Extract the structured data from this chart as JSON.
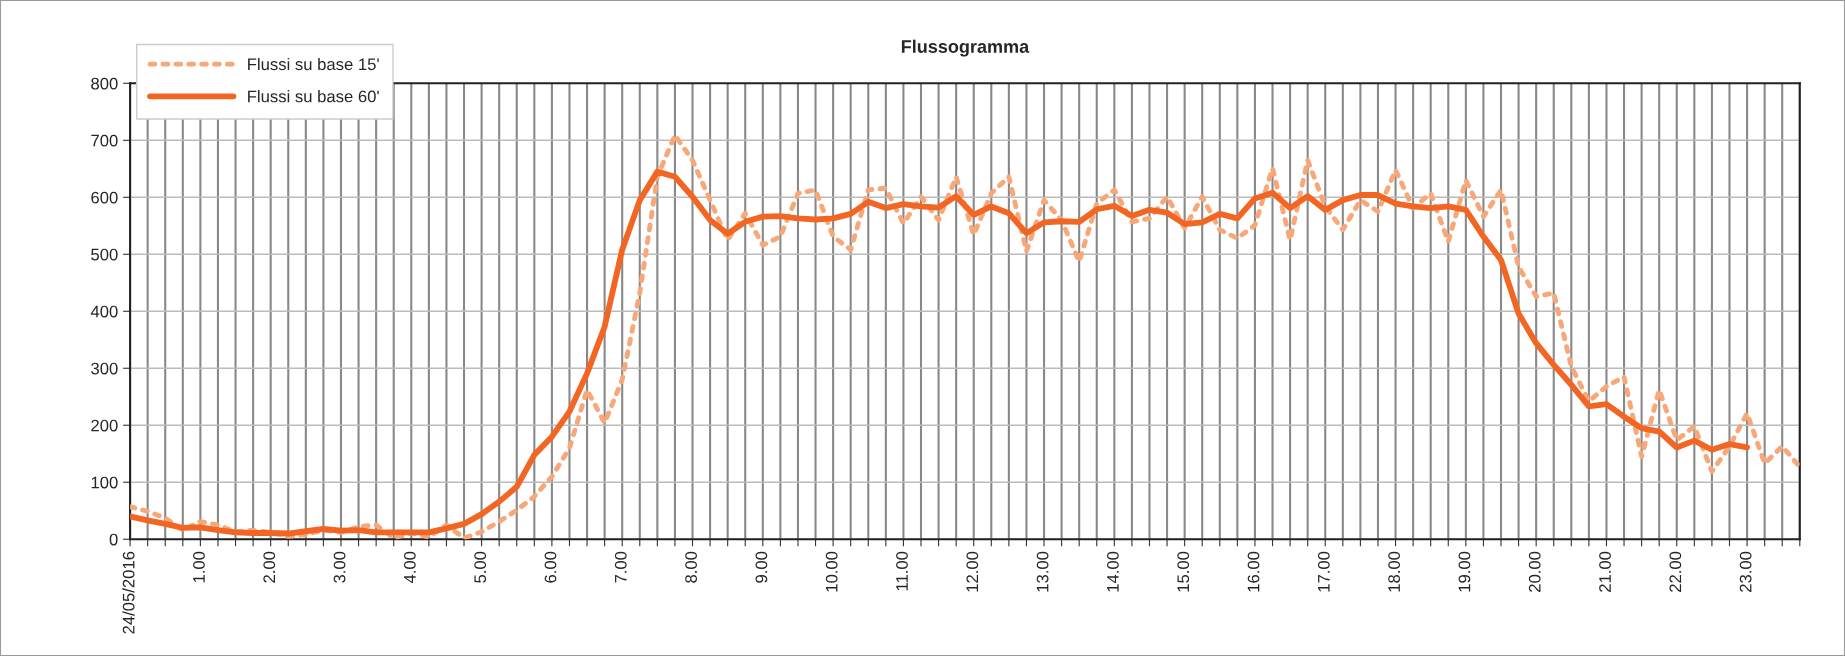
{
  "chart_data": {
    "type": "line",
    "title": "Flussogramma",
    "categories": [
      "24/05/2016",
      null,
      null,
      null,
      "1.00",
      null,
      null,
      null,
      "2.00",
      null,
      null,
      null,
      "3.00",
      null,
      null,
      null,
      "4.00",
      null,
      null,
      null,
      "5.00",
      null,
      null,
      null,
      "6.00",
      null,
      null,
      null,
      "7.00",
      null,
      null,
      null,
      "8.00",
      null,
      null,
      null,
      "9.00",
      null,
      null,
      null,
      "10.00",
      null,
      null,
      null,
      "11.00",
      null,
      null,
      null,
      "12.00",
      null,
      null,
      null,
      "13.00",
      null,
      null,
      null,
      "14.00",
      null,
      null,
      null,
      "15.00",
      null,
      null,
      null,
      "16.00",
      null,
      null,
      null,
      "17.00",
      null,
      null,
      null,
      "18.00",
      null,
      null,
      null,
      "19.00",
      null,
      null,
      null,
      "20.00",
      null,
      null,
      null,
      "21.00",
      null,
      null,
      null,
      "22.00",
      null,
      null,
      null,
      "23.00",
      null,
      null,
      null
    ],
    "series": [
      {
        "name": "Flussi su base 15'",
        "color": "#f8a878",
        "line_style": "dotted",
        "values": [
          57,
          49,
          37,
          16,
          31,
          25,
          13,
          16,
          12,
          5,
          8,
          16,
          12,
          22,
          25,
          2,
          11,
          4,
          25,
          2,
          13,
          31,
          51,
          75,
          110,
          160,
          262,
          204,
          280,
          432,
          636,
          709,
          665,
          595,
          525,
          572,
          516,
          531,
          607,
          613,
          531,
          508,
          613,
          616,
          554,
          601,
          560,
          636,
          534,
          607,
          636,
          505,
          595,
          560,
          487,
          589,
          613,
          557,
          563,
          601,
          546,
          601,
          543,
          528,
          551,
          651,
          525,
          665,
          584,
          543,
          595,
          575,
          648,
          581,
          607,
          522,
          630,
          566,
          613,
          478,
          426,
          432,
          303,
          242,
          268,
          285,
          145,
          262,
          174,
          198,
          119,
          163,
          221,
          133,
          163,
          127
        ]
      },
      {
        "name": "Flussi su base 60'",
        "color": "#f26522",
        "line_style": "solid",
        "values": [
          40,
          33,
          27,
          20,
          21,
          16,
          12,
          11,
          11,
          10,
          14,
          18,
          15,
          16,
          12,
          12,
          12,
          12,
          19,
          27,
          44,
          66,
          92,
          148,
          180,
          224,
          291,
          373,
          508,
          595,
          645,
          636,
          601,
          560,
          536,
          557,
          566,
          567,
          563,
          561,
          563,
          571,
          592,
          581,
          588,
          584,
          582,
          602,
          569,
          584,
          572,
          537,
          556,
          558,
          557,
          579,
          585,
          567,
          578,
          573,
          553,
          556,
          571,
          563,
          598,
          608,
          581,
          602,
          578,
          595,
          604,
          604,
          589,
          584,
          581,
          584,
          578,
          531,
          490,
          396,
          344,
          306,
          271,
          233,
          237,
          215,
          195,
          189,
          161,
          173,
          157,
          167,
          161,
          null,
          null,
          null
        ]
      }
    ],
    "ylim": [
      0,
      800
    ],
    "yticks": [
      0,
      100,
      200,
      300,
      400,
      500,
      600,
      700,
      800
    ],
    "grid": true,
    "legend": "top left",
    "marker": "none"
  }
}
